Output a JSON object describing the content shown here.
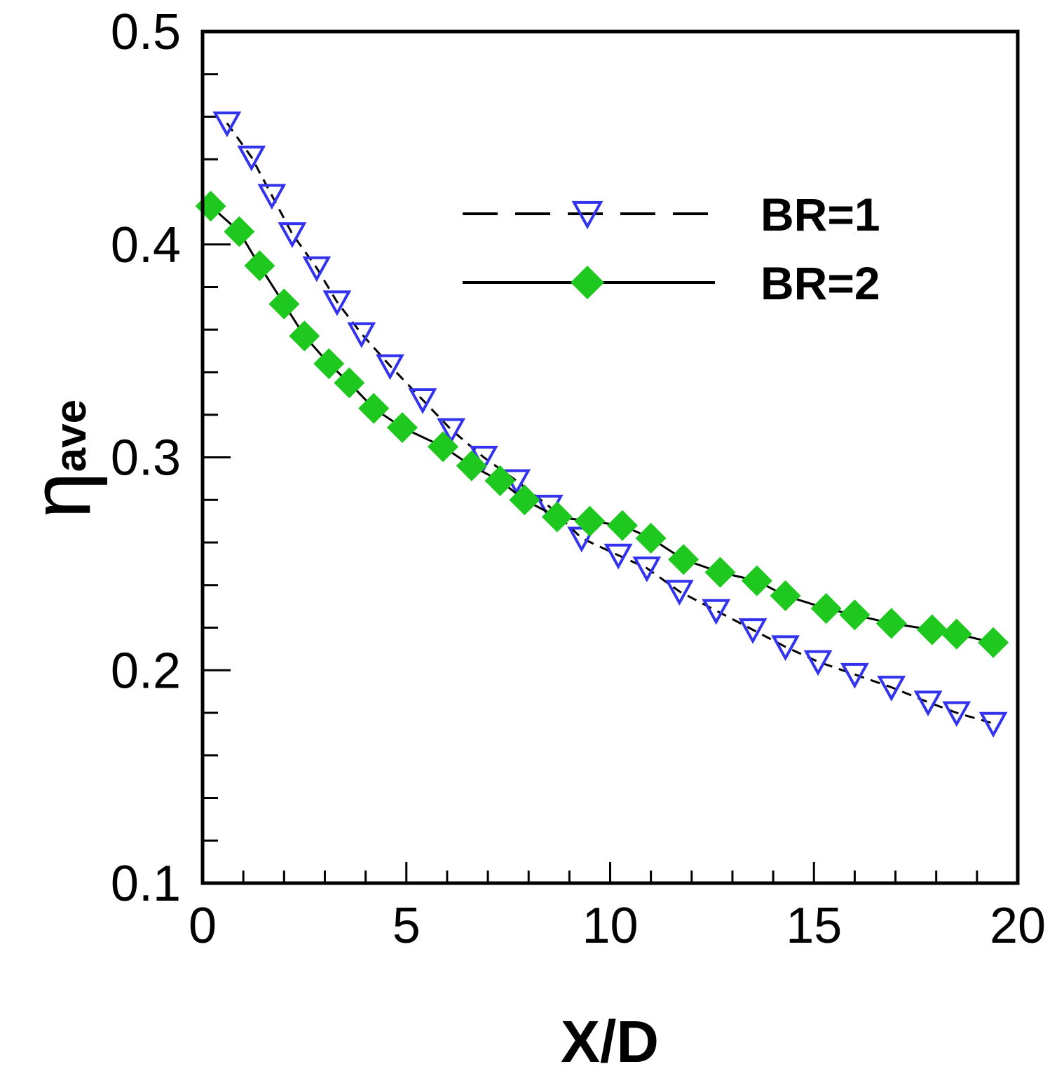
{
  "chart_data": {
    "type": "line",
    "title": "",
    "xlabel": "X/D",
    "ylabel": {
      "symbol": "η",
      "subscript": "ave"
    },
    "xlim": [
      0,
      20
    ],
    "ylim": [
      0.1,
      0.5
    ],
    "x_ticks": [
      "0",
      "5",
      "10",
      "15",
      "20"
    ],
    "y_ticks": [
      "0.1",
      "0.2",
      "0.3",
      "0.4",
      "0.5"
    ],
    "x_minor_step": 1,
    "y_minor_step": 0.02,
    "grid": false,
    "legend_position": "top-right",
    "series": [
      {
        "name": "BR=1",
        "line_style": "dashed",
        "line_color": "#000000",
        "marker": "triangle-down-open",
        "marker_color": "#3333ee",
        "x": [
          0.6,
          1.2,
          1.7,
          2.2,
          2.8,
          3.3,
          3.9,
          4.6,
          5.4,
          6.1,
          6.9,
          7.7,
          8.5,
          9.3,
          10.2,
          10.9,
          11.7,
          12.6,
          13.5,
          14.3,
          15.1,
          16.0,
          16.9,
          17.8,
          18.5,
          19.4
        ],
        "y": [
          0.457,
          0.441,
          0.423,
          0.405,
          0.389,
          0.373,
          0.358,
          0.343,
          0.327,
          0.313,
          0.3,
          0.289,
          0.277,
          0.262,
          0.254,
          0.248,
          0.237,
          0.228,
          0.219,
          0.211,
          0.204,
          0.198,
          0.192,
          0.185,
          0.18,
          0.175
        ]
      },
      {
        "name": "BR=2",
        "line_style": "solid",
        "line_color": "#000000",
        "marker": "diamond-filled",
        "marker_color": "#1ec81e",
        "x": [
          0.2,
          0.9,
          1.4,
          2.0,
          2.5,
          3.1,
          3.6,
          4.2,
          4.9,
          5.9,
          6.6,
          7.3,
          7.9,
          8.7,
          9.5,
          10.3,
          11.0,
          11.8,
          12.7,
          13.6,
          14.3,
          15.3,
          16.0,
          16.9,
          17.9,
          18.5,
          19.4
        ],
        "y": [
          0.418,
          0.406,
          0.39,
          0.372,
          0.357,
          0.344,
          0.335,
          0.323,
          0.314,
          0.305,
          0.296,
          0.289,
          0.28,
          0.272,
          0.27,
          0.268,
          0.262,
          0.252,
          0.246,
          0.242,
          0.235,
          0.229,
          0.226,
          0.222,
          0.219,
          0.217,
          0.213
        ]
      }
    ]
  }
}
